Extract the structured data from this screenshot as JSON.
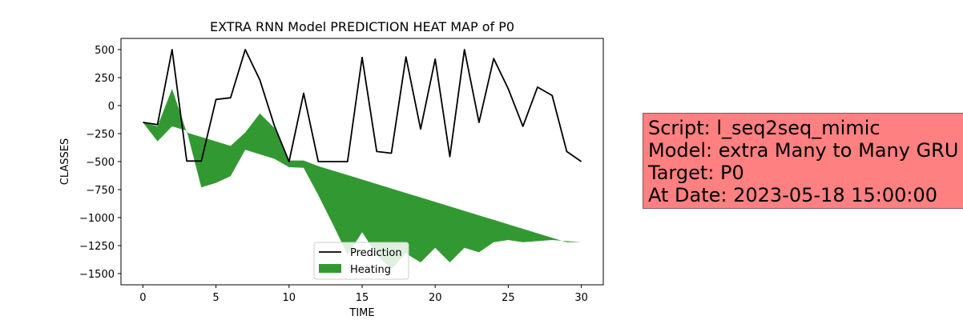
{
  "chart_data": {
    "type": "line",
    "title": "EXTRA RNN Model PREDICTION HEAT MAP of P0",
    "xlabel": "TIME",
    "ylabel": "CLASSES",
    "xlim": [
      -1.5,
      31.5
    ],
    "ylim": [
      -1600,
      600
    ],
    "xticks": [
      0,
      5,
      10,
      15,
      20,
      25,
      30
    ],
    "yticks": [
      500,
      250,
      0,
      -250,
      -500,
      -750,
      -1000,
      -1250,
      -1500
    ],
    "ytick_labels": [
      "500",
      "250",
      "0",
      "−250",
      "−500",
      "−750",
      "−1000",
      "−1250",
      "−1500"
    ],
    "legend_location": "lower center",
    "grid": false,
    "series": [
      {
        "name": "Prediction",
        "kind": "line",
        "color": "#000000",
        "x": [
          0,
          1,
          2,
          3,
          4,
          5,
          6,
          7,
          8,
          9,
          10,
          11,
          12,
          13,
          14,
          15,
          16,
          17,
          18,
          19,
          20,
          21,
          22,
          23,
          24,
          25,
          26,
          27,
          28,
          29,
          30
        ],
        "y": [
          -150,
          -170,
          500,
          -495,
          -495,
          55,
          70,
          500,
          230,
          -180,
          -500,
          110,
          -500,
          -500,
          -500,
          430,
          -410,
          -425,
          435,
          -210,
          415,
          -455,
          500,
          -150,
          420,
          150,
          -185,
          165,
          90,
          -410,
          -500
        ]
      },
      {
        "name": "Heating",
        "kind": "fill_between",
        "color": "#329932",
        "x": [
          0,
          1,
          2,
          3,
          4,
          5,
          6,
          7,
          8,
          9,
          10,
          11,
          12,
          13,
          14,
          15,
          16,
          17,
          18,
          19,
          20,
          21,
          22,
          23,
          24,
          25,
          26,
          27,
          28,
          29,
          30
        ],
        "y_upper": [
          -150,
          -185,
          150,
          -240,
          -280,
          -320,
          -360,
          -240,
          -70,
          -200,
          -490,
          -490,
          -540,
          -580,
          -620,
          -660,
          -700,
          -740,
          -780,
          -820,
          -860,
          -900,
          -940,
          -980,
          -1020,
          -1060,
          -1100,
          -1140,
          -1180,
          -1220,
          -1220
        ],
        "y_lower": [
          -150,
          -320,
          -185,
          -225,
          -730,
          -690,
          -630,
          -395,
          -435,
          -475,
          -550,
          -555,
          -800,
          -1060,
          -1330,
          -1130,
          -1330,
          -1460,
          -1320,
          -1400,
          -1270,
          -1400,
          -1270,
          -1310,
          -1220,
          -1200,
          -1220,
          -1210,
          -1200,
          -1210,
          -1220
        ]
      }
    ]
  },
  "info_box": {
    "line1": "Script: l_seq2seq_mimic",
    "line2": "Model: extra Many to Many GRU",
    "line3": "Target: P0",
    "line4": "At Date: 2023-05-18 15:00:00",
    "background": "#ff8080"
  }
}
